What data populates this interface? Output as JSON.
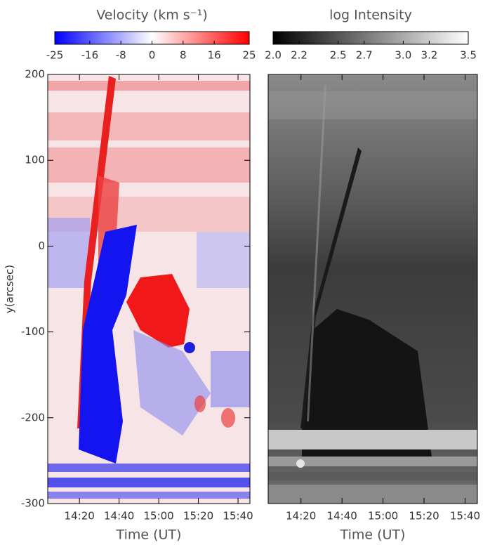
{
  "chart_data": [
    {
      "type": "heatmap",
      "title": "Velocity (km s⁻¹)",
      "colorbar": {
        "lim": [
          -25,
          25
        ],
        "ticks": [
          -25,
          -16,
          -8,
          0,
          8,
          16,
          25
        ],
        "colors": [
          "#0000ff",
          "#ffffff",
          "#ff0000"
        ]
      },
      "xlabel": "Time (UT)",
      "ylabel": "y(arcsec)",
      "xlim": [
        844,
        946
      ],
      "xticks": [
        {
          "value": 860,
          "label": "14:20"
        },
        {
          "value": 880,
          "label": "14:40"
        },
        {
          "value": 900,
          "label": "15:00"
        },
        {
          "value": 920,
          "label": "15:20"
        },
        {
          "value": 940,
          "label": "15:40"
        }
      ],
      "ylim": [
        -300,
        200
      ],
      "yticks": [
        -300,
        -200,
        -100,
        0,
        100,
        200
      ]
    },
    {
      "type": "heatmap",
      "title": "log Intensity",
      "colorbar": {
        "lim": [
          2,
          3.5
        ],
        "ticks": [
          {
            "value": 2,
            "label": "2.0"
          },
          2.2,
          2.5,
          2.7,
          {
            "value": 3,
            "label": "3.0"
          },
          3.2,
          3.5
        ],
        "colors": [
          "#000000",
          "#ffffff"
        ]
      },
      "xlabel": "Time (UT)",
      "xlim": [
        844,
        946
      ],
      "xticks": [
        {
          "value": 860,
          "label": "14:20"
        },
        {
          "value": 880,
          "label": "14:40"
        },
        {
          "value": 900,
          "label": "15:00"
        },
        {
          "value": 920,
          "label": "15:20"
        },
        {
          "value": 940,
          "label": "15:40"
        }
      ],
      "ylim": [
        -300,
        200
      ]
    }
  ]
}
